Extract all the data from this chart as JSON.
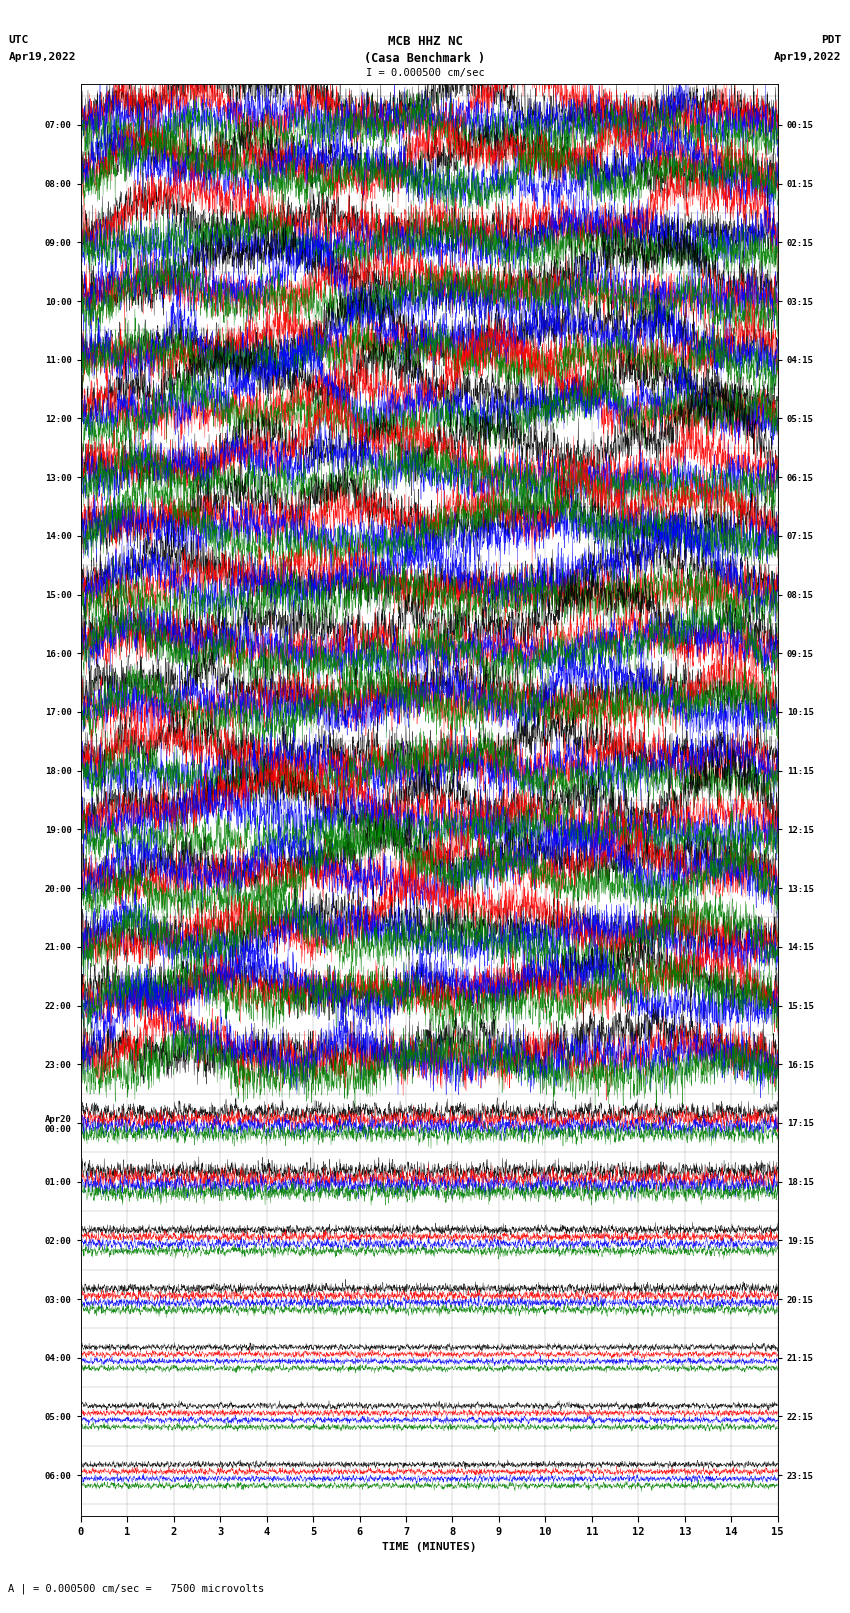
{
  "title_line1": "MCB HHZ NC",
  "title_line2": "(Casa Benchmark )",
  "title_line3": "I = 0.000500 cm/sec",
  "left_label": "UTC",
  "left_date": "Apr19,2022",
  "right_label": "PDT",
  "right_date": "Apr19,2022",
  "xlabel": "TIME (MINUTES)",
  "scale_text": "A | = 0.000500 cm/sec =   7500 microvolts",
  "left_times": [
    "07:00",
    "08:00",
    "09:00",
    "10:00",
    "11:00",
    "12:00",
    "13:00",
    "14:00",
    "15:00",
    "16:00",
    "17:00",
    "18:00",
    "19:00",
    "20:00",
    "21:00",
    "22:00",
    "23:00",
    "Apr20\n00:00",
    "01:00",
    "02:00",
    "03:00",
    "04:00",
    "05:00",
    "06:00"
  ],
  "right_times": [
    "00:15",
    "01:15",
    "02:15",
    "03:15",
    "04:15",
    "05:15",
    "06:15",
    "07:15",
    "08:15",
    "09:15",
    "10:15",
    "11:15",
    "12:15",
    "13:15",
    "14:15",
    "15:15",
    "16:15",
    "17:15",
    "18:15",
    "19:15",
    "20:15",
    "21:15",
    "22:15",
    "23:15"
  ],
  "colors": [
    "black",
    "red",
    "blue",
    "green"
  ],
  "bg_color": "white",
  "n_rows": 24,
  "n_minutes": 15,
  "noise_seed": 42
}
